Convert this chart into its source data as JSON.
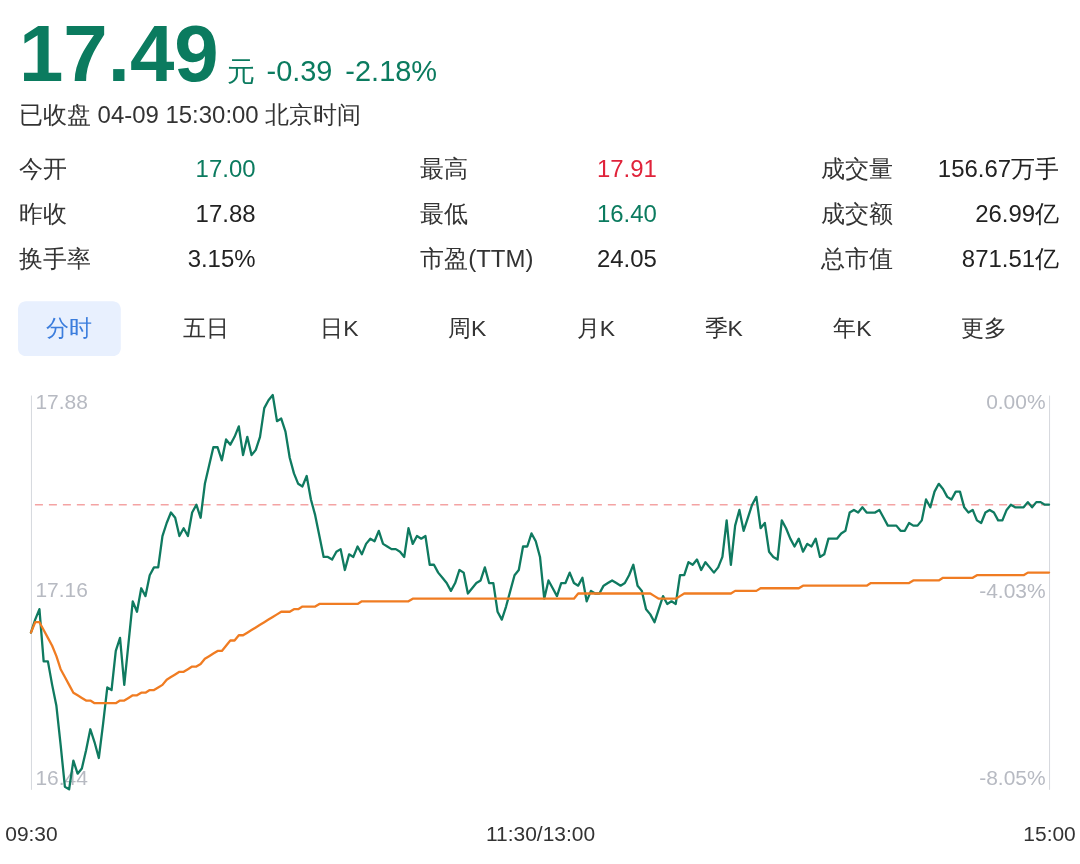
{
  "chart_data": [
    {
      "type": "other",
      "annotations": [
        "17.49",
        "元",
        "-0.39",
        "-2.18%",
        "已收盘 04-09 15:30:00 北京时间",
        "今开",
        "17.00",
        "最高",
        "17.91",
        "成交量",
        "156.67万手",
        "昨收",
        "17.88",
        "最低",
        "16.40",
        "成交额",
        "26.99亿",
        "换手率",
        "3.15%",
        "市盈(TTM)",
        "24.05",
        "总市值",
        "871.51亿",
        "分时",
        "五日",
        "日K",
        "周K",
        "月K",
        "季K",
        "年K",
        "更多"
      ]
    },
    {
      "type": "line",
      "categories": [
        "09:30",
        null,
        null,
        null,
        null,
        null,
        null,
        null,
        null,
        null,
        null,
        null,
        null,
        null,
        null,
        null,
        null,
        null,
        null,
        null,
        null,
        null,
        null,
        null,
        null,
        null,
        null,
        null,
        null,
        null,
        null,
        null,
        null,
        null,
        null,
        null,
        null,
        null,
        null,
        null,
        null,
        null,
        null,
        null,
        null,
        null,
        null,
        null,
        null,
        null,
        null,
        null,
        null,
        null,
        null,
        null,
        null,
        null,
        null,
        null,
        null,
        null,
        null,
        null,
        null,
        null,
        null,
        null,
        null,
        null,
        null,
        null,
        null,
        null,
        null,
        null,
        null,
        null,
        null,
        null,
        null,
        null,
        null,
        null,
        null,
        null,
        null,
        null,
        null,
        null,
        null,
        null,
        null,
        null,
        null,
        null,
        null,
        null,
        null,
        null,
        null,
        null,
        null,
        null,
        null,
        null,
        null,
        null,
        null,
        null,
        null,
        null,
        null,
        null,
        null,
        null,
        null,
        null,
        null,
        null,
        "11:30/13:00",
        null,
        null,
        null,
        null,
        null,
        null,
        null,
        null,
        null,
        null,
        null,
        null,
        null,
        null,
        null,
        null,
        null,
        null,
        null,
        null,
        null,
        null,
        null,
        null,
        null,
        null,
        null,
        null,
        null,
        null,
        null,
        null,
        null,
        null,
        null,
        null,
        null,
        null,
        null,
        null,
        null,
        null,
        null,
        null,
        null,
        null,
        null,
        null,
        null,
        null,
        null,
        null,
        null,
        null,
        null,
        null,
        null,
        null,
        null,
        null,
        null,
        null,
        null,
        null,
        null,
        null,
        null,
        null,
        null,
        null,
        null,
        null,
        null,
        null,
        null,
        null,
        null,
        null,
        null,
        null,
        null,
        null,
        null,
        null,
        null,
        null,
        null,
        null,
        null,
        null,
        null,
        null,
        null,
        null,
        null,
        null,
        null,
        null,
        null,
        null,
        null,
        null,
        null,
        null,
        null,
        null,
        null,
        null,
        null,
        null,
        null,
        null,
        null,
        null,
        null,
        null,
        null,
        null,
        null,
        "15:00"
      ],
      "ylim": [
        16.4,
        17.91
      ],
      "yticks": [
        17.88,
        17.16,
        16.44
      ],
      "y2lim": [
        -8.28,
        0.17
      ],
      "y2ticks": [
        {
          "value": 0,
          "label": "0.00%"
        },
        {
          "value": -4.03,
          "label": "-4.03%"
        },
        {
          "value": -8.05,
          "label": "-8.05%"
        }
      ],
      "ref_lines": [
        {
          "axis": "y2",
          "value": -2.18,
          "color": "#f4a3a3",
          "line_style": "dashed"
        }
      ],
      "series": [
        {
          "color": "#0f7a60",
          "values": [
            17.0,
            17.05,
            17.09,
            16.89,
            16.89,
            16.8,
            16.72,
            16.57,
            16.41,
            16.4,
            16.51,
            16.46,
            16.48,
            16.55,
            16.63,
            16.58,
            16.52,
            16.65,
            16.79,
            16.78,
            16.93,
            16.98,
            16.8,
            16.96,
            17.12,
            17.08,
            17.17,
            17.14,
            17.22,
            17.25,
            17.25,
            17.37,
            17.42,
            17.46,
            17.44,
            17.37,
            17.4,
            17.37,
            17.46,
            17.49,
            17.44,
            17.57,
            17.64,
            17.71,
            17.71,
            17.66,
            17.74,
            17.72,
            17.75,
            17.79,
            17.68,
            17.75,
            17.68,
            17.7,
            17.75,
            17.86,
            17.89,
            17.91,
            17.81,
            17.82,
            17.77,
            17.67,
            17.61,
            17.57,
            17.56,
            17.6,
            17.51,
            17.45,
            17.37,
            17.29,
            17.29,
            17.28,
            17.31,
            17.32,
            17.24,
            17.3,
            17.29,
            17.33,
            17.3,
            17.34,
            17.36,
            17.35,
            17.39,
            17.34,
            17.33,
            17.32,
            17.32,
            17.31,
            17.29,
            17.4,
            17.34,
            17.37,
            17.36,
            17.37,
            17.26,
            17.26,
            17.23,
            17.21,
            17.19,
            17.16,
            17.19,
            17.24,
            17.23,
            17.15,
            17.17,
            17.19,
            17.2,
            17.25,
            17.19,
            17.19,
            17.08,
            17.05,
            17.1,
            17.16,
            17.22,
            17.24,
            17.33,
            17.33,
            17.38,
            17.35,
            17.29,
            17.13,
            17.2,
            17.17,
            17.14,
            17.19,
            17.19,
            17.23,
            17.19,
            17.18,
            17.21,
            17.12,
            17.16,
            17.15,
            17.15,
            17.18,
            17.19,
            17.2,
            17.19,
            17.18,
            17.19,
            17.22,
            17.26,
            17.18,
            17.16,
            17.09,
            17.07,
            17.04,
            17.09,
            17.14,
            17.11,
            17.12,
            17.11,
            17.22,
            17.22,
            17.27,
            17.26,
            17.28,
            17.24,
            17.27,
            17.25,
            17.23,
            17.25,
            17.29,
            17.43,
            17.26,
            17.41,
            17.47,
            17.39,
            17.44,
            17.49,
            17.52,
            17.4,
            17.42,
            17.31,
            17.29,
            17.28,
            17.43,
            17.4,
            17.36,
            17.33,
            17.36,
            17.31,
            17.34,
            17.33,
            17.36,
            17.29,
            17.3,
            17.36,
            17.36,
            17.36,
            17.38,
            17.39,
            17.46,
            17.47,
            17.46,
            17.48,
            17.46,
            17.46,
            17.46,
            17.47,
            17.44,
            17.41,
            17.41,
            17.41,
            17.39,
            17.39,
            17.42,
            17.41,
            17.41,
            17.43,
            17.51,
            17.48,
            17.54,
            17.57,
            17.55,
            17.52,
            17.51,
            17.54,
            17.54,
            17.48,
            17.46,
            17.47,
            17.43,
            17.42,
            17.46,
            17.47,
            17.46,
            17.43,
            17.43,
            17.47,
            17.49,
            17.48,
            17.48,
            17.48,
            17.5,
            17.48,
            17.5,
            17.5,
            17.49,
            17.49
          ]
        },
        {
          "color": "#f07c22",
          "values": [
            17.0,
            17.04,
            17.04,
            17.01,
            16.98,
            16.95,
            16.91,
            16.86,
            16.83,
            16.8,
            16.77,
            16.76,
            16.75,
            16.74,
            16.74,
            16.73,
            16.73,
            16.73,
            16.73,
            16.73,
            16.73,
            16.74,
            16.74,
            16.75,
            16.76,
            16.76,
            16.77,
            16.77,
            16.78,
            16.78,
            16.79,
            16.8,
            16.82,
            16.83,
            16.84,
            16.85,
            16.85,
            16.86,
            16.87,
            16.87,
            16.88,
            16.9,
            16.91,
            16.92,
            16.93,
            16.93,
            16.95,
            16.97,
            16.97,
            16.99,
            16.99,
            17.0,
            17.01,
            17.02,
            17.03,
            17.04,
            17.05,
            17.06,
            17.07,
            17.08,
            17.08,
            17.08,
            17.09,
            17.09,
            17.1,
            17.1,
            17.1,
            17.1,
            17.11,
            17.11,
            17.11,
            17.11,
            17.11,
            17.11,
            17.11,
            17.11,
            17.11,
            17.11,
            17.12,
            17.12,
            17.12,
            17.12,
            17.12,
            17.12,
            17.12,
            17.12,
            17.12,
            17.12,
            17.12,
            17.12,
            17.13,
            17.13,
            17.13,
            17.13,
            17.13,
            17.13,
            17.13,
            17.13,
            17.13,
            17.13,
            17.13,
            17.13,
            17.13,
            17.13,
            17.13,
            17.13,
            17.13,
            17.13,
            17.13,
            17.13,
            17.13,
            17.13,
            17.13,
            17.13,
            17.13,
            17.13,
            17.13,
            17.13,
            17.13,
            17.13,
            17.13,
            17.13,
            17.13,
            17.13,
            17.13,
            17.13,
            17.13,
            17.13,
            17.13,
            17.15,
            17.15,
            17.15,
            17.15,
            17.15,
            17.15,
            17.15,
            17.15,
            17.15,
            17.15,
            17.15,
            17.15,
            17.15,
            17.15,
            17.15,
            17.15,
            17.15,
            17.15,
            17.14,
            17.13,
            17.13,
            17.13,
            17.13,
            17.13,
            17.14,
            17.15,
            17.15,
            17.15,
            17.15,
            17.15,
            17.15,
            17.15,
            17.15,
            17.15,
            17.15,
            17.15,
            17.15,
            17.16,
            17.16,
            17.16,
            17.16,
            17.16,
            17.16,
            17.17,
            17.17,
            17.17,
            17.17,
            17.17,
            17.17,
            17.17,
            17.17,
            17.17,
            17.17,
            17.18,
            17.18,
            17.18,
            17.18,
            17.18,
            17.18,
            17.18,
            17.18,
            17.18,
            17.18,
            17.18,
            17.18,
            17.18,
            17.18,
            17.18,
            17.18,
            17.19,
            17.19,
            17.19,
            17.19,
            17.19,
            17.19,
            17.19,
            17.19,
            17.19,
            17.19,
            17.2,
            17.2,
            17.2,
            17.2,
            17.2,
            17.2,
            17.2,
            17.21,
            17.21,
            17.21,
            17.21,
            17.21,
            17.21,
            17.21,
            17.21,
            17.22,
            17.22,
            17.22,
            17.22,
            17.22,
            17.22,
            17.22,
            17.22,
            17.22,
            17.22,
            17.22,
            17.22,
            17.23,
            17.23,
            17.23,
            17.23,
            17.23,
            17.23
          ]
        }
      ]
    }
  ]
}
